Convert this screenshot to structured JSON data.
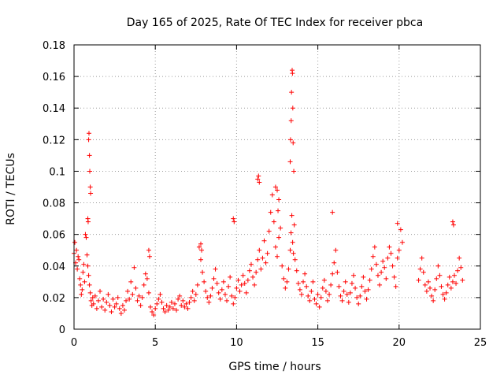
{
  "chart_data": {
    "type": "scatter",
    "title": "Day 165 of 2025, Rate Of TEC Index for receiver pbca",
    "xlabel": "GPS time / hours",
    "ylabel": "ROTI / TECUs",
    "xlim": [
      0,
      25
    ],
    "ylim": [
      0,
      0.18
    ],
    "grid": true,
    "marker": "plus",
    "color": "#ff0000",
    "x_ticks": [
      0,
      5,
      10,
      15,
      20,
      25
    ],
    "x_tick_labels": [
      "0",
      "5",
      "10",
      "15",
      "20",
      "25"
    ],
    "y_ticks": [
      0,
      0.02,
      0.04,
      0.06,
      0.08,
      0.1,
      0.12,
      0.14,
      0.16,
      0.18
    ],
    "y_tick_labels": [
      "0",
      "0.02",
      "0.04",
      "0.06",
      "0.08",
      "0.1",
      "0.12",
      "0.14",
      "0.16",
      "0.18"
    ],
    "series": [
      {
        "name": "ROTI",
        "x": [
          0.0,
          0.05,
          0.1,
          0.15,
          0.2,
          0.25,
          0.3,
          0.35,
          0.4,
          0.45,
          0.5,
          0.55,
          0.6,
          0.65,
          0.7,
          0.75,
          0.8,
          0.85,
          0.9,
          0.95,
          1.0,
          1.05,
          1.1,
          1.15,
          1.2,
          1.3,
          1.4,
          1.5,
          1.6,
          1.7,
          1.8,
          1.9,
          2.0,
          2.1,
          2.2,
          2.3,
          2.4,
          2.5,
          2.6,
          2.7,
          2.8,
          2.9,
          3.0,
          3.1,
          3.2,
          3.3,
          3.4,
          3.5,
          3.6,
          3.7,
          3.8,
          3.9,
          4.0,
          4.1,
          4.2,
          4.3,
          4.4,
          4.5,
          4.6,
          4.7,
          4.8,
          4.9,
          5.0,
          5.1,
          5.2,
          5.3,
          5.4,
          5.5,
          5.6,
          5.7,
          5.8,
          5.9,
          6.0,
          6.1,
          6.2,
          6.3,
          6.4,
          6.5,
          6.6,
          6.7,
          6.8,
          6.9,
          7.0,
          7.1,
          7.2,
          7.3,
          7.4,
          7.5,
          7.6,
          7.7,
          7.8,
          7.9,
          8.0,
          8.1,
          8.2,
          8.3,
          8.4,
          8.5,
          8.6,
          8.7,
          8.8,
          8.9,
          9.0,
          9.1,
          9.2,
          9.3,
          9.4,
          9.5,
          9.6,
          9.7,
          9.8,
          9.9,
          10.0,
          10.1,
          10.2,
          10.3,
          10.4,
          10.5,
          10.6,
          10.7,
          10.8,
          10.9,
          11.0,
          11.1,
          11.2,
          11.3,
          11.4,
          11.5,
          11.6,
          11.7,
          11.8,
          11.9,
          12.0,
          12.1,
          12.2,
          12.3,
          12.4,
          12.5,
          12.6,
          12.7,
          12.8,
          12.9,
          13.0,
          13.1,
          13.2,
          13.3,
          13.35,
          13.4,
          13.45,
          13.5,
          13.55,
          13.6,
          13.7,
          13.8,
          13.9,
          14.0,
          14.1,
          14.2,
          14.3,
          14.4,
          14.5,
          14.6,
          14.7,
          14.8,
          14.9,
          15.0,
          15.1,
          15.2,
          15.3,
          15.4,
          15.5,
          15.6,
          15.7,
          15.8,
          15.9,
          16.0,
          16.1,
          16.2,
          16.3,
          16.4,
          16.5,
          16.6,
          16.7,
          16.8,
          16.9,
          17.0,
          17.1,
          17.2,
          17.3,
          17.4,
          17.5,
          17.6,
          17.7,
          17.8,
          17.9,
          18.0,
          18.1,
          18.2,
          18.3,
          18.4,
          18.5,
          18.6,
          18.7,
          18.8,
          18.9,
          19.0,
          19.1,
          19.2,
          19.3,
          19.4,
          19.5,
          19.6,
          19.7,
          19.8,
          19.9,
          20.0,
          20.1,
          20.2,
          21.2,
          21.3,
          21.4,
          21.5,
          21.6,
          21.7,
          21.8,
          21.9,
          22.0,
          22.1,
          22.2,
          22.3,
          22.4,
          22.5,
          22.6,
          22.7,
          22.8,
          22.9,
          23.0,
          23.1,
          23.2,
          23.3,
          23.4,
          23.5,
          23.6,
          23.7,
          23.8,
          23.9,
          0.9,
          0.92,
          0.95,
          0.97,
          1.0,
          1.02,
          0.85,
          0.87,
          11.3,
          11.35,
          11.4,
          12.4,
          12.5,
          12.55,
          12.6,
          13.3,
          13.32,
          13.36,
          13.38,
          13.42,
          13.44,
          13.46,
          13.48,
          13.52,
          9.8,
          9.85,
          15.9,
          19.9,
          23.3,
          23.35,
          7.8,
          7.85,
          4.6,
          4.65
        ],
        "y": [
          0.048,
          0.055,
          0.042,
          0.05,
          0.038,
          0.046,
          0.044,
          0.032,
          0.028,
          0.022,
          0.025,
          0.036,
          0.041,
          0.03,
          0.06,
          0.058,
          0.047,
          0.04,
          0.034,
          0.028,
          0.023,
          0.018,
          0.015,
          0.02,
          0.016,
          0.021,
          0.013,
          0.018,
          0.024,
          0.014,
          0.019,
          0.012,
          0.017,
          0.022,
          0.015,
          0.011,
          0.019,
          0.014,
          0.016,
          0.02,
          0.013,
          0.01,
          0.015,
          0.012,
          0.018,
          0.024,
          0.019,
          0.03,
          0.022,
          0.039,
          0.026,
          0.018,
          0.021,
          0.015,
          0.02,
          0.028,
          0.035,
          0.032,
          0.023,
          0.014,
          0.011,
          0.009,
          0.013,
          0.016,
          0.019,
          0.022,
          0.017,
          0.013,
          0.011,
          0.015,
          0.012,
          0.014,
          0.017,
          0.013,
          0.016,
          0.012,
          0.019,
          0.021,
          0.015,
          0.018,
          0.014,
          0.016,
          0.013,
          0.017,
          0.02,
          0.024,
          0.018,
          0.022,
          0.028,
          0.052,
          0.044,
          0.036,
          0.03,
          0.024,
          0.02,
          0.017,
          0.021,
          0.026,
          0.032,
          0.038,
          0.029,
          0.023,
          0.019,
          0.025,
          0.03,
          0.022,
          0.018,
          0.027,
          0.033,
          0.021,
          0.016,
          0.02,
          0.026,
          0.031,
          0.024,
          0.028,
          0.034,
          0.029,
          0.023,
          0.031,
          0.037,
          0.041,
          0.033,
          0.028,
          0.036,
          0.044,
          0.05,
          0.038,
          0.045,
          0.056,
          0.042,
          0.048,
          0.062,
          0.074,
          0.085,
          0.068,
          0.052,
          0.046,
          0.058,
          0.064,
          0.04,
          0.032,
          0.026,
          0.03,
          0.038,
          0.05,
          0.061,
          0.072,
          0.055,
          0.048,
          0.066,
          0.044,
          0.037,
          0.029,
          0.025,
          0.022,
          0.03,
          0.035,
          0.027,
          0.021,
          0.018,
          0.024,
          0.03,
          0.019,
          0.016,
          0.022,
          0.014,
          0.02,
          0.026,
          0.031,
          0.024,
          0.018,
          0.022,
          0.028,
          0.035,
          0.042,
          0.05,
          0.036,
          0.027,
          0.021,
          0.018,
          0.024,
          0.03,
          0.022,
          0.017,
          0.023,
          0.029,
          0.034,
          0.026,
          0.02,
          0.016,
          0.021,
          0.027,
          0.033,
          0.024,
          0.019,
          0.025,
          0.031,
          0.038,
          0.046,
          0.052,
          0.041,
          0.034,
          0.028,
          0.036,
          0.043,
          0.039,
          0.032,
          0.045,
          0.052,
          0.048,
          0.04,
          0.033,
          0.027,
          0.045,
          0.05,
          0.063,
          0.055,
          0.031,
          0.038,
          0.045,
          0.036,
          0.028,
          0.024,
          0.03,
          0.026,
          0.021,
          0.018,
          0.025,
          0.032,
          0.04,
          0.034,
          0.027,
          0.022,
          0.019,
          0.023,
          0.028,
          0.033,
          0.026,
          0.03,
          0.034,
          0.029,
          0.037,
          0.045,
          0.039,
          0.031,
          0.12,
          0.124,
          0.11,
          0.1,
          0.09,
          0.086,
          0.07,
          0.068,
          0.095,
          0.097,
          0.093,
          0.09,
          0.088,
          0.075,
          0.082,
          0.106,
          0.12,
          0.132,
          0.15,
          0.164,
          0.162,
          0.14,
          0.118,
          0.1,
          0.07,
          0.068,
          0.074,
          0.067,
          0.068,
          0.066,
          0.054,
          0.05,
          0.05,
          0.046
        ]
      }
    ]
  }
}
